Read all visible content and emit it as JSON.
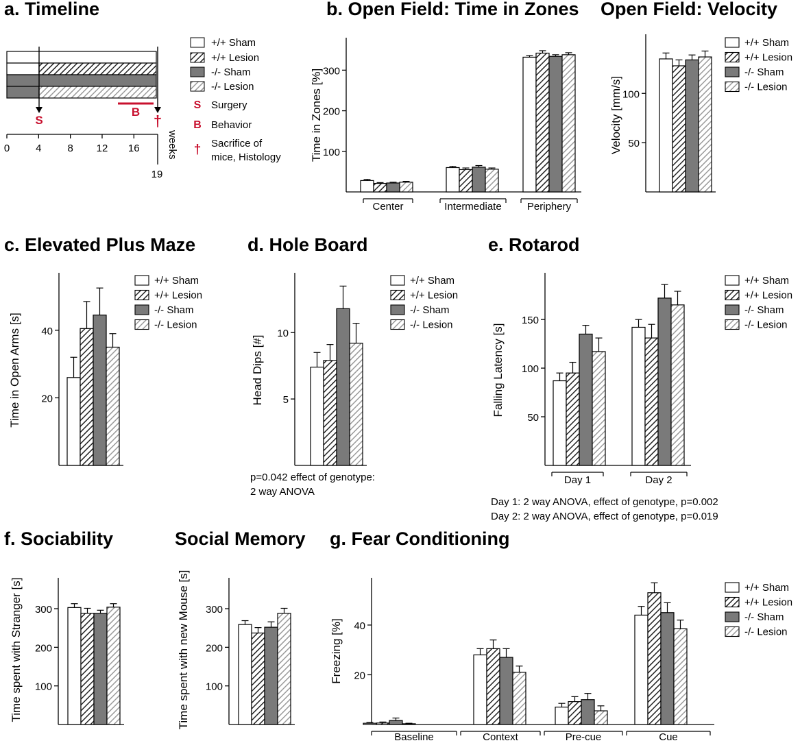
{
  "legend": [
    "+/+ Sham",
    "+/+ Lesion",
    "-/- Sham",
    "-/- Lesion"
  ],
  "colors": {
    "sham_ko": "#7a7a7a",
    "lesion_hatch_wt": "#222222",
    "lesion_hatch_ko": "#9a9a9a",
    "red": "#c8102e"
  },
  "timeline": {
    "title": "a. Timeline",
    "ticks": [
      "0",
      "4",
      "8",
      "12",
      "16"
    ],
    "end_tick": "19",
    "unit": "weeks",
    "surgery_mark": "S",
    "behavior_mark": "B",
    "sacrifice_mark": "†",
    "legend_surgery": "Surgery",
    "legend_behavior": "Behavior",
    "legend_sacrifice_1": "Sacrifice of",
    "legend_sacrifice_2": "mice, Histology"
  },
  "notes": {
    "holeboard_1": "p=0.042 effect of genotype:",
    "holeboard_2": "2 way ANOVA",
    "rotarod_1": "Day 1: 2 way ANOVA, effect of genotype, p=0.002",
    "rotarod_2": "Day 2: 2 way ANOVA, effect of genotype, p=0.019"
  },
  "chart_data": [
    {
      "id": "openfield_zones",
      "type": "bar",
      "title": "b. Open Field: Time in Zones",
      "ylabel": "Time in Zones [%]",
      "xlabel": "",
      "categories": [
        "Center",
        "Intermediate",
        "Periphery"
      ],
      "ylim": [
        0,
        380
      ],
      "yticks": [
        100,
        200,
        300
      ],
      "series": [
        {
          "name": "+/+ Sham",
          "values": [
            28,
            60,
            332
          ],
          "errors": [
            3,
            3,
            4
          ]
        },
        {
          "name": "+/+ Lesion",
          "values": [
            21,
            55,
            342
          ],
          "errors": [
            2,
            4,
            6
          ]
        },
        {
          "name": "-/- Sham",
          "values": [
            22,
            61,
            334
          ],
          "errors": [
            2,
            4,
            4
          ]
        },
        {
          "name": "-/- Lesion",
          "values": [
            24,
            56,
            338
          ],
          "errors": [
            2,
            3,
            5
          ]
        }
      ]
    },
    {
      "id": "openfield_velocity",
      "type": "bar",
      "title": "Open Field: Velocity",
      "ylabel": "Velocity [mm/s]",
      "xlabel": "",
      "categories": [
        ""
      ],
      "ylim": [
        0,
        160
      ],
      "yticks": [
        50,
        100
      ],
      "series": [
        {
          "name": "+/+ Sham",
          "values": [
            135
          ],
          "errors": [
            6
          ]
        },
        {
          "name": "+/+ Lesion",
          "values": [
            128
          ],
          "errors": [
            6
          ]
        },
        {
          "name": "-/- Sham",
          "values": [
            134
          ],
          "errors": [
            5
          ]
        },
        {
          "name": "-/- Lesion",
          "values": [
            137
          ],
          "errors": [
            6
          ]
        }
      ]
    },
    {
      "id": "plus_maze",
      "type": "bar",
      "title": "c. Elevated Plus Maze",
      "ylabel": "Time in Open Arms [s]",
      "xlabel": "",
      "categories": [
        ""
      ],
      "ylim": [
        0,
        57
      ],
      "yticks": [
        20,
        40
      ],
      "series": [
        {
          "name": "+/+ Sham",
          "values": [
            26
          ],
          "errors": [
            6
          ]
        },
        {
          "name": "+/+ Lesion",
          "values": [
            40.5
          ],
          "errors": [
            8
          ]
        },
        {
          "name": "-/- Sham",
          "values": [
            44.5
          ],
          "errors": [
            8
          ]
        },
        {
          "name": "-/- Lesion",
          "values": [
            35
          ],
          "errors": [
            4
          ]
        }
      ]
    },
    {
      "id": "hole_board",
      "type": "bar",
      "title": "d. Hole Board",
      "ylabel": "Head Dips [#]",
      "xlabel": "",
      "categories": [
        ""
      ],
      "ylim": [
        0,
        14.5
      ],
      "yticks": [
        5,
        10
      ],
      "series": [
        {
          "name": "+/+ Sham",
          "values": [
            7.4
          ],
          "errors": [
            1.1
          ]
        },
        {
          "name": "+/+ Lesion",
          "values": [
            7.9
          ],
          "errors": [
            1.2
          ]
        },
        {
          "name": "-/- Sham",
          "values": [
            11.8
          ],
          "errors": [
            1.7
          ]
        },
        {
          "name": "-/- Lesion",
          "values": [
            9.2
          ],
          "errors": [
            1.5
          ]
        }
      ]
    },
    {
      "id": "rotarod",
      "type": "bar",
      "title": "e. Rotarod",
      "ylabel": "Falling Latency [s]",
      "xlabel": "",
      "categories": [
        "Day 1",
        "Day 2"
      ],
      "ylim": [
        0,
        198
      ],
      "yticks": [
        50,
        100,
        150
      ],
      "series": [
        {
          "name": "+/+ Sham",
          "values": [
            87,
            142
          ],
          "errors": [
            8,
            8
          ]
        },
        {
          "name": "+/+ Lesion",
          "values": [
            95,
            131
          ],
          "errors": [
            11,
            14
          ]
        },
        {
          "name": "-/- Sham",
          "values": [
            135,
            172
          ],
          "errors": [
            9,
            14
          ]
        },
        {
          "name": "-/- Lesion",
          "values": [
            117,
            165
          ],
          "errors": [
            14,
            14
          ]
        }
      ]
    },
    {
      "id": "sociability",
      "type": "bar",
      "title": "f. Sociability",
      "ylabel": "Time spent with Stranger [s]",
      "xlabel": "",
      "categories": [
        ""
      ],
      "ylim": [
        0,
        380
      ],
      "yticks": [
        100,
        200,
        300
      ],
      "series": [
        {
          "name": "+/+ Sham",
          "values": [
            303
          ],
          "errors": [
            10
          ]
        },
        {
          "name": "+/+ Lesion",
          "values": [
            288
          ],
          "errors": [
            13
          ]
        },
        {
          "name": "-/- Sham",
          "values": [
            288
          ],
          "errors": [
            8
          ]
        },
        {
          "name": "-/- Lesion",
          "values": [
            304
          ],
          "errors": [
            9
          ]
        }
      ]
    },
    {
      "id": "social_memory",
      "type": "bar",
      "title": "Social Memory",
      "ylabel": "Time spent with new Mouse [s]",
      "xlabel": "",
      "categories": [
        ""
      ],
      "ylim": [
        0,
        380
      ],
      "yticks": [
        100,
        200,
        300
      ],
      "series": [
        {
          "name": "+/+ Sham",
          "values": [
            259
          ],
          "errors": [
            10
          ]
        },
        {
          "name": "+/+ Lesion",
          "values": [
            237
          ],
          "errors": [
            14
          ]
        },
        {
          "name": "-/- Sham",
          "values": [
            252
          ],
          "errors": [
            14
          ]
        },
        {
          "name": "-/- Lesion",
          "values": [
            288
          ],
          "errors": [
            13
          ]
        }
      ]
    },
    {
      "id": "fear_conditioning",
      "type": "bar",
      "title": "g. Fear Conditioning",
      "ylabel": "Freezing [%]",
      "xlabel": "",
      "categories": [
        "Baseline",
        "Context",
        "Pre-cue",
        "Cue"
      ],
      "ylim": [
        0,
        59
      ],
      "yticks": [
        20,
        40
      ],
      "series": [
        {
          "name": "+/+ Sham",
          "values": [
            0.5,
            28,
            7,
            44
          ],
          "errors": [
            0.3,
            2.5,
            1.5,
            3.5
          ]
        },
        {
          "name": "+/+ Lesion",
          "values": [
            0.6,
            30.5,
            9.2,
            53
          ],
          "errors": [
            0.4,
            3.5,
            2,
            4
          ]
        },
        {
          "name": "-/- Sham",
          "values": [
            1.6,
            27,
            10,
            45
          ],
          "errors": [
            1,
            3.5,
            2.5,
            4
          ]
        },
        {
          "name": "-/- Lesion",
          "values": [
            0.3,
            21,
            5.5,
            38.5
          ],
          "errors": [
            0.2,
            2.5,
            2,
            3.5
          ]
        }
      ]
    }
  ]
}
